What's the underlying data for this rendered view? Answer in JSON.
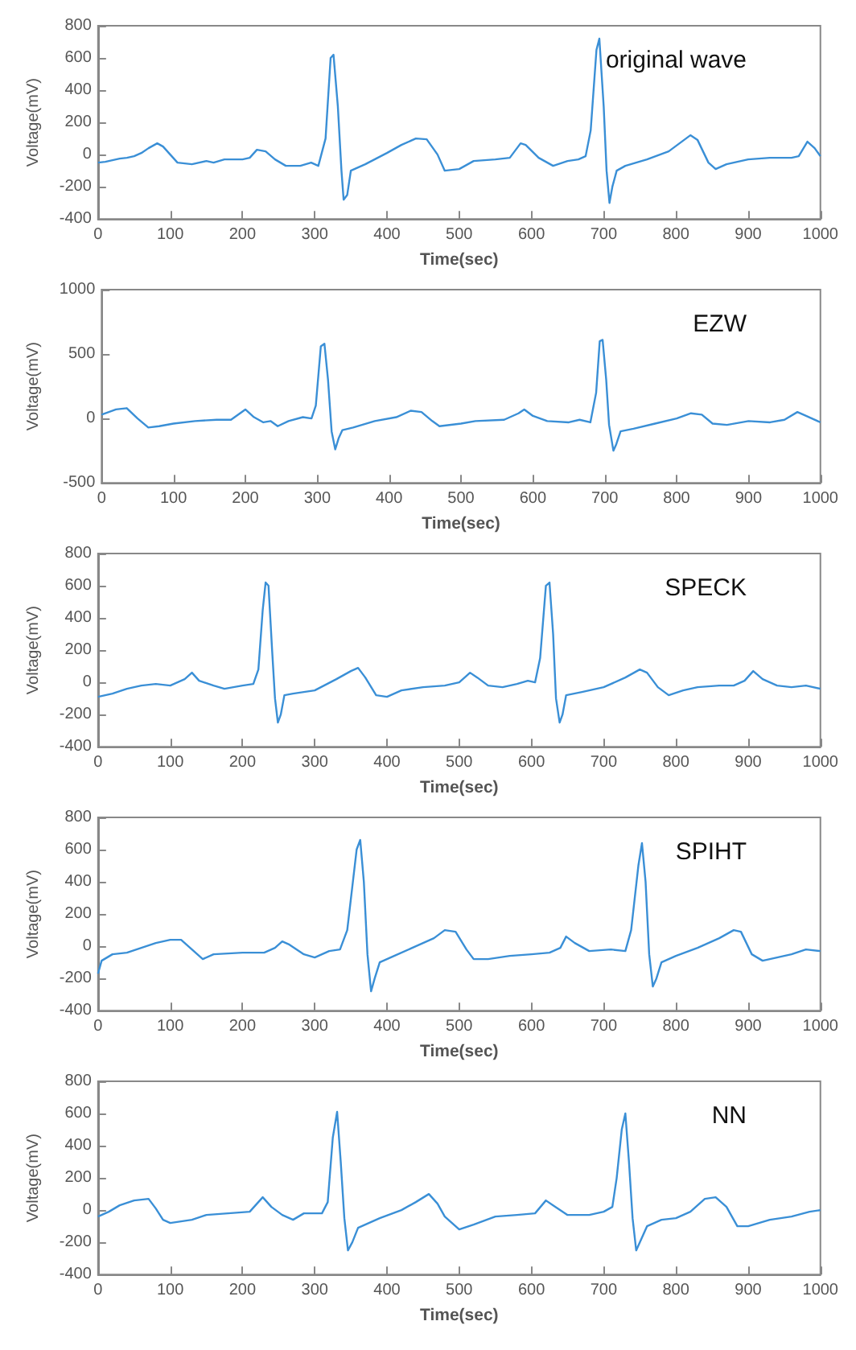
{
  "chart_data": [
    {
      "type": "line",
      "xlabel": "Time(sec)",
      "ylabel": "Voltage(mV)",
      "annotations": [
        "original wave"
      ],
      "color": "#3a8fd6",
      "xlim": [
        0,
        1000
      ],
      "ylim": [
        -400,
        800
      ],
      "xticks": [
        0,
        100,
        200,
        300,
        400,
        500,
        600,
        700,
        800,
        900,
        1000
      ],
      "yticks": [
        -400,
        -200,
        0,
        200,
        400,
        600,
        800
      ],
      "x": [
        0,
        10,
        20,
        30,
        40,
        50,
        60,
        70,
        82,
        90,
        100,
        110,
        130,
        150,
        160,
        175,
        200,
        210,
        220,
        232,
        245,
        260,
        280,
        295,
        305,
        315,
        322,
        326,
        332,
        337,
        340,
        345,
        350,
        370,
        400,
        420,
        440,
        455,
        470,
        480,
        500,
        520,
        550,
        570,
        585,
        592,
        610,
        630,
        650,
        665,
        675,
        682,
        690,
        694,
        700,
        704,
        708,
        712,
        718,
        730,
        760,
        790,
        820,
        830,
        845,
        855,
        870,
        900,
        930,
        960,
        970,
        982,
        992,
        1000
      ],
      "values": [
        -50,
        -45,
        -35,
        -25,
        -20,
        -10,
        10,
        40,
        70,
        50,
        0,
        -50,
        -60,
        -40,
        -50,
        -30,
        -30,
        -20,
        30,
        20,
        -30,
        -70,
        -70,
        -50,
        -70,
        100,
        600,
        620,
        300,
        -100,
        -280,
        -250,
        -100,
        -60,
        10,
        60,
        100,
        95,
        0,
        -100,
        -90,
        -40,
        -30,
        -20,
        70,
        60,
        -20,
        -70,
        -40,
        -30,
        -10,
        150,
        650,
        720,
        300,
        -100,
        -300,
        -200,
        -100,
        -70,
        -30,
        20,
        120,
        90,
        -50,
        -90,
        -60,
        -30,
        -20,
        -20,
        -10,
        80,
        40,
        -10
      ]
    },
    {
      "type": "line",
      "xlabel": "Time(sec)",
      "ylabel": "Voltage(mV)",
      "annotations": [
        "EZW"
      ],
      "color": "#3a8fd6",
      "xlim": [
        0,
        1000
      ],
      "ylim": [
        -500,
        1000
      ],
      "xticks": [
        0,
        100,
        200,
        300,
        400,
        500,
        600,
        700,
        800,
        900,
        1000
      ],
      "yticks": [
        -500,
        0,
        500,
        1000
      ],
      "x": [
        0,
        20,
        35,
        50,
        65,
        80,
        100,
        130,
        160,
        180,
        200,
        212,
        225,
        235,
        245,
        260,
        280,
        292,
        298,
        305,
        310,
        315,
        320,
        325,
        330,
        335,
        350,
        380,
        410,
        430,
        445,
        460,
        470,
        500,
        520,
        560,
        580,
        588,
        600,
        620,
        650,
        665,
        680,
        688,
        693,
        697,
        702,
        706,
        712,
        716,
        722,
        740,
        770,
        800,
        820,
        835,
        850,
        870,
        900,
        930,
        950,
        968,
        980,
        1000
      ],
      "values": [
        30,
        70,
        80,
        0,
        -70,
        -60,
        -40,
        -20,
        -10,
        -10,
        70,
        10,
        -30,
        -20,
        -60,
        -20,
        10,
        0,
        100,
        560,
        580,
        300,
        -100,
        -240,
        -150,
        -90,
        -70,
        -20,
        10,
        60,
        50,
        -20,
        -60,
        -40,
        -20,
        -10,
        40,
        70,
        20,
        -20,
        -30,
        -10,
        -30,
        200,
        600,
        610,
        300,
        -50,
        -250,
        -200,
        -100,
        -80,
        -40,
        0,
        40,
        30,
        -40,
        -50,
        -20,
        -30,
        -10,
        50,
        20,
        -30
      ]
    },
    {
      "type": "line",
      "xlabel": "Time(sec)",
      "ylabel": "Voltage(mV)",
      "annotations": [
        "SPECK"
      ],
      "color": "#3a8fd6",
      "xlim": [
        0,
        1000
      ],
      "ylim": [
        -400,
        800
      ],
      "xticks": [
        0,
        100,
        200,
        300,
        400,
        500,
        600,
        700,
        800,
        900,
        1000
      ],
      "yticks": [
        -400,
        -200,
        0,
        200,
        400,
        600,
        800
      ],
      "x": [
        0,
        20,
        40,
        60,
        80,
        100,
        120,
        130,
        140,
        160,
        175,
        200,
        215,
        222,
        228,
        232,
        236,
        241,
        245,
        249,
        253,
        258,
        270,
        300,
        330,
        350,
        360,
        370,
        385,
        400,
        420,
        450,
        480,
        500,
        515,
        525,
        540,
        560,
        580,
        595,
        605,
        612,
        620,
        625,
        630,
        634,
        639,
        643,
        648,
        670,
        700,
        730,
        750,
        760,
        775,
        790,
        810,
        830,
        860,
        880,
        895,
        907,
        920,
        940,
        960,
        980,
        1000
      ],
      "values": [
        -90,
        -70,
        -40,
        -20,
        -10,
        -20,
        20,
        60,
        10,
        -20,
        -40,
        -20,
        -10,
        80,
        450,
        620,
        600,
        200,
        -100,
        -250,
        -200,
        -80,
        -70,
        -50,
        20,
        70,
        90,
        30,
        -80,
        -90,
        -50,
        -30,
        -20,
        0,
        60,
        30,
        -20,
        -30,
        -10,
        10,
        0,
        150,
        600,
        620,
        300,
        -100,
        -250,
        -200,
        -80,
        -60,
        -30,
        30,
        80,
        60,
        -30,
        -80,
        -50,
        -30,
        -20,
        -20,
        10,
        70,
        20,
        -20,
        -30,
        -20,
        -40
      ]
    },
    {
      "type": "line",
      "xlabel": "Time(sec)",
      "ylabel": "Voltage(mV)",
      "annotations": [
        "SPIHT"
      ],
      "color": "#3a8fd6",
      "xlim": [
        0,
        1000
      ],
      "ylim": [
        -400,
        800
      ],
      "xticks": [
        0,
        100,
        200,
        300,
        400,
        500,
        600,
        700,
        800,
        900,
        1000
      ],
      "yticks": [
        -400,
        -200,
        0,
        200,
        400,
        600,
        800
      ],
      "x": [
        0,
        5,
        20,
        40,
        60,
        80,
        100,
        115,
        130,
        145,
        160,
        200,
        230,
        245,
        255,
        265,
        285,
        300,
        320,
        335,
        345,
        358,
        363,
        368,
        373,
        378,
        383,
        390,
        410,
        440,
        465,
        480,
        495,
        510,
        520,
        540,
        570,
        600,
        625,
        640,
        648,
        660,
        680,
        710,
        730,
        738,
        748,
        753,
        758,
        763,
        768,
        773,
        780,
        800,
        830,
        860,
        880,
        890,
        905,
        920,
        940,
        960,
        980,
        1000
      ],
      "values": [
        -170,
        -90,
        -50,
        -40,
        -10,
        20,
        40,
        40,
        -20,
        -80,
        -50,
        -40,
        -40,
        -10,
        30,
        10,
        -50,
        -70,
        -30,
        -20,
        100,
        600,
        660,
        400,
        -50,
        -280,
        -200,
        -100,
        -60,
        0,
        50,
        100,
        90,
        -20,
        -80,
        -80,
        -60,
        -50,
        -40,
        -10,
        60,
        20,
        -30,
        -20,
        -30,
        100,
        500,
        640,
        400,
        -50,
        -250,
        -200,
        -100,
        -60,
        -10,
        50,
        100,
        90,
        -50,
        -90,
        -70,
        -50,
        -20,
        -30
      ]
    },
    {
      "type": "line",
      "xlabel": "Time(sec)",
      "ylabel": "Voltage(mV)",
      "annotations": [
        "NN"
      ],
      "color": "#3a8fd6",
      "xlim": [
        0,
        1000
      ],
      "ylim": [
        -400,
        800
      ],
      "xticks": [
        0,
        100,
        200,
        300,
        400,
        500,
        600,
        700,
        800,
        900,
        1000
      ],
      "yticks": [
        -400,
        -200,
        0,
        200,
        400,
        600,
        800
      ],
      "x": [
        0,
        15,
        30,
        50,
        70,
        80,
        90,
        100,
        130,
        150,
        180,
        210,
        220,
        228,
        240,
        255,
        270,
        285,
        310,
        318,
        325,
        331,
        336,
        341,
        346,
        352,
        360,
        390,
        420,
        440,
        458,
        470,
        480,
        500,
        520,
        550,
        580,
        605,
        620,
        630,
        650,
        680,
        700,
        712,
        718,
        725,
        730,
        735,
        740,
        745,
        750,
        760,
        780,
        800,
        820,
        840,
        855,
        870,
        885,
        900,
        930,
        960,
        985,
        1000
      ],
      "values": [
        -40,
        -10,
        30,
        60,
        70,
        10,
        -60,
        -80,
        -60,
        -30,
        -20,
        -10,
        40,
        80,
        20,
        -30,
        -60,
        -20,
        -20,
        50,
        450,
        610,
        300,
        -50,
        -250,
        -200,
        -110,
        -50,
        0,
        50,
        100,
        40,
        -40,
        -120,
        -90,
        -40,
        -30,
        -20,
        60,
        30,
        -30,
        -30,
        -10,
        20,
        200,
        500,
        600,
        300,
        -50,
        -250,
        -200,
        -100,
        -60,
        -50,
        -10,
        70,
        80,
        20,
        -100,
        -100,
        -60,
        -40,
        -10,
        0
      ]
    }
  ]
}
